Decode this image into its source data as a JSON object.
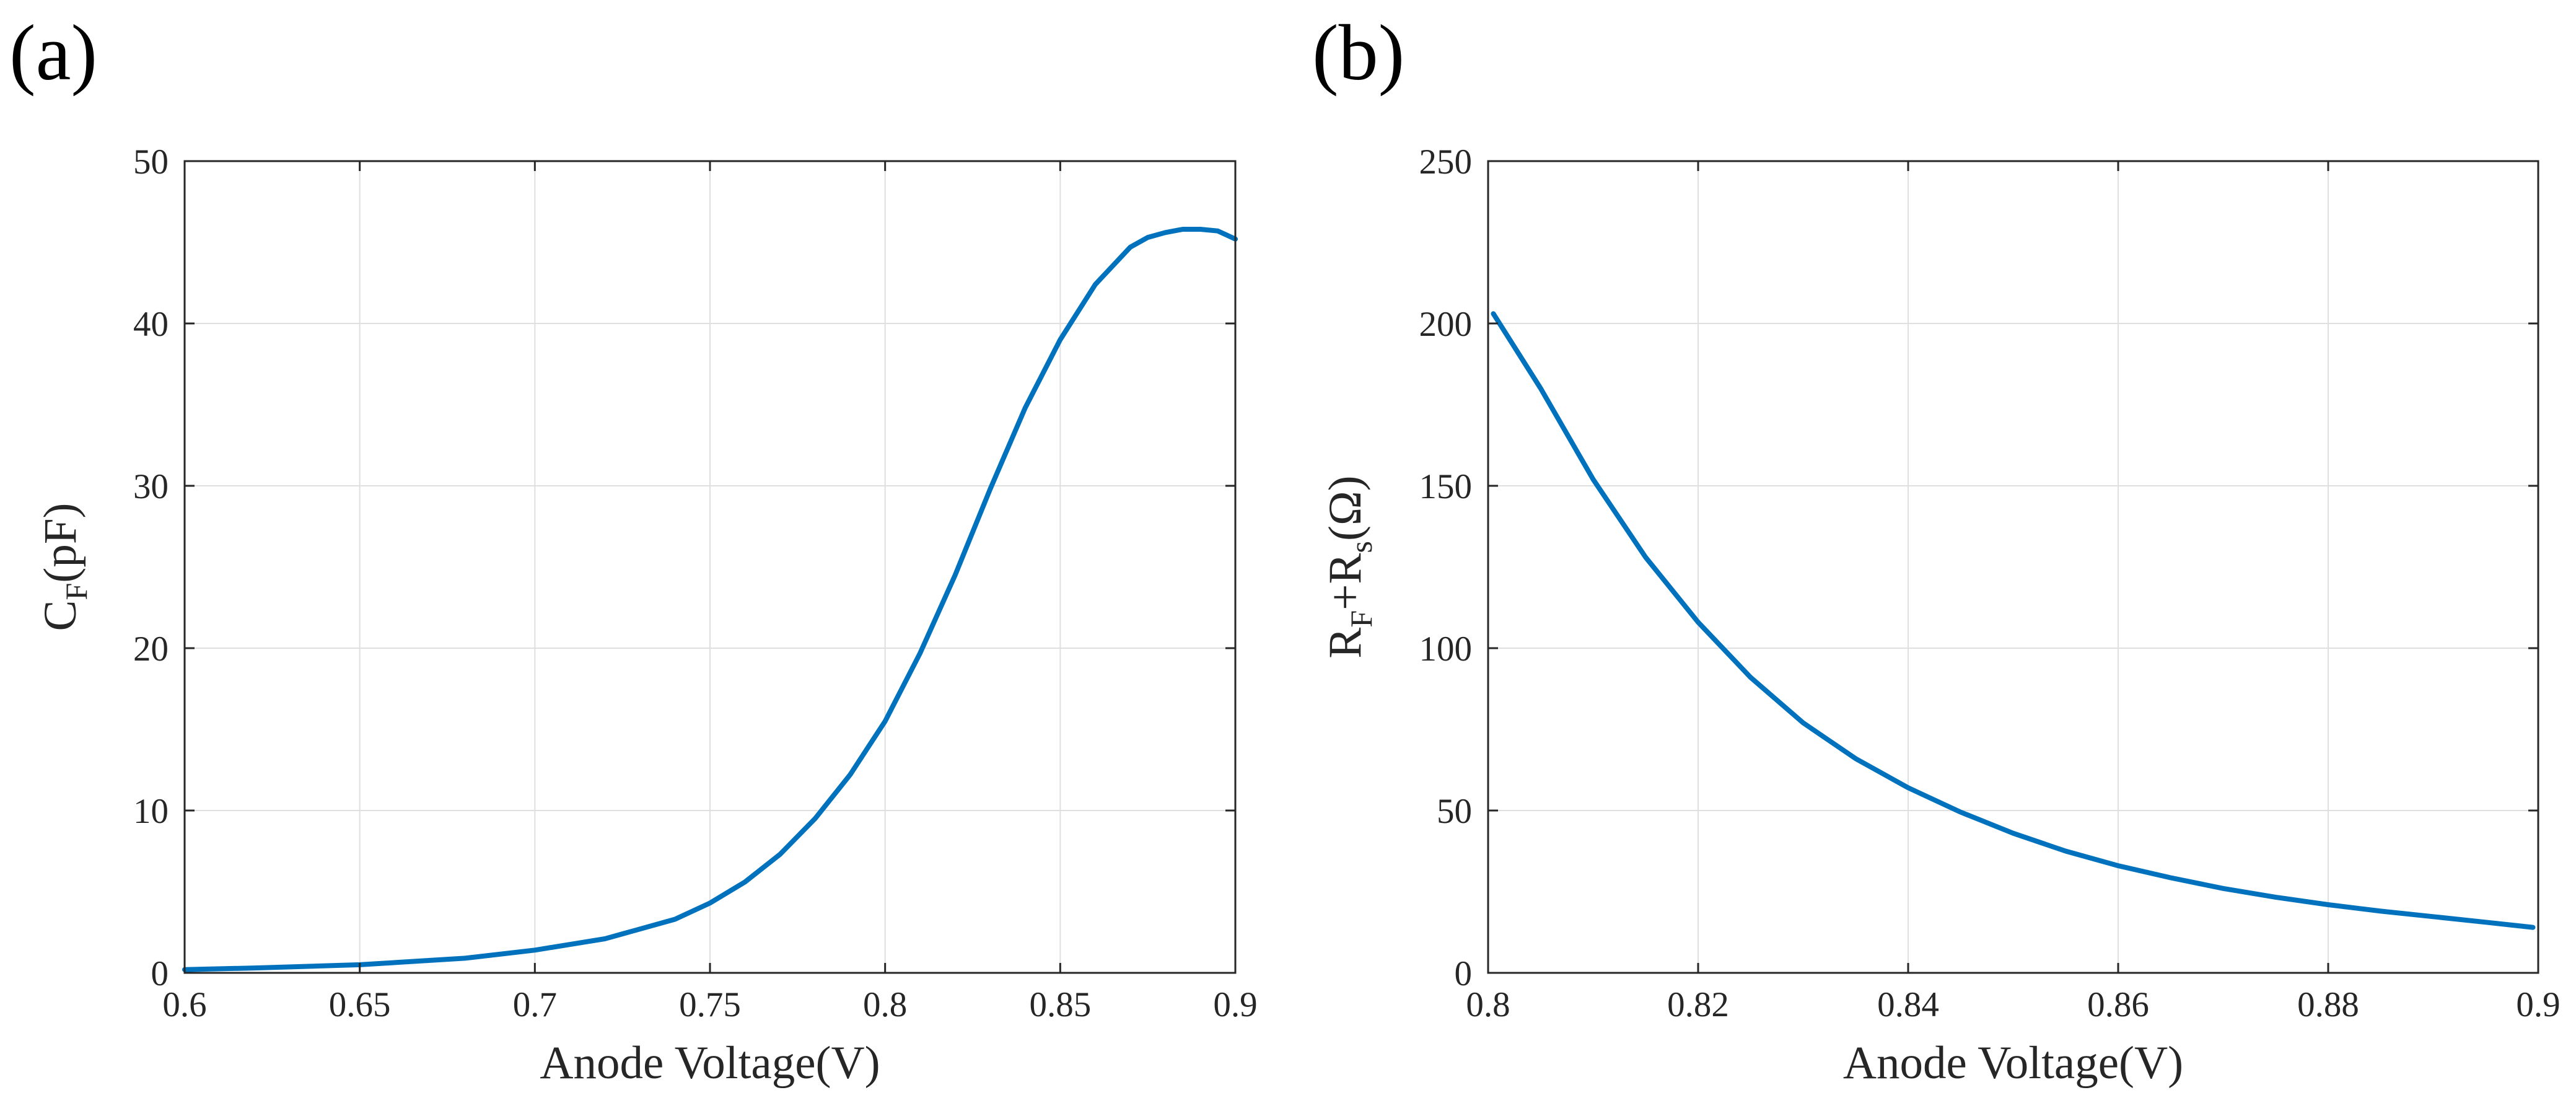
{
  "chart_data": [
    {
      "type": "line",
      "panel_label": "(a)",
      "title": "",
      "xlabel": "Anode Voltage(V)",
      "ylabel": {
        "main": "C",
        "sub": "F",
        "rest": "(pF)"
      },
      "xlim": [
        0.6,
        0.9
      ],
      "ylim": [
        0,
        50
      ],
      "xticks": [
        0.6,
        0.65,
        0.7,
        0.75,
        0.8,
        0.85,
        0.9
      ],
      "xtick_labels": [
        "0.6",
        "0.65",
        "0.7",
        "0.75",
        "0.8",
        "0.85",
        "0.9"
      ],
      "yticks": [
        0,
        10,
        20,
        30,
        40,
        50
      ],
      "ytick_labels": [
        "0",
        "10",
        "20",
        "30",
        "40",
        "50"
      ],
      "grid": true,
      "series": [
        {
          "name": "C_F",
          "color": "#0072BD",
          "x": [
            0.6,
            0.62,
            0.65,
            0.68,
            0.7,
            0.72,
            0.74,
            0.75,
            0.76,
            0.77,
            0.78,
            0.79,
            0.8,
            0.81,
            0.82,
            0.83,
            0.84,
            0.85,
            0.86,
            0.87,
            0.875,
            0.88,
            0.885,
            0.89,
            0.895,
            0.9
          ],
          "y": [
            0.2,
            0.3,
            0.5,
            0.9,
            1.4,
            2.1,
            3.3,
            4.3,
            5.6,
            7.3,
            9.5,
            12.2,
            15.5,
            19.7,
            24.5,
            29.8,
            34.8,
            39.0,
            42.4,
            44.7,
            45.3,
            45.6,
            45.8,
            45.8,
            45.7,
            45.2
          ]
        }
      ]
    },
    {
      "type": "line",
      "panel_label": "(b)",
      "title": "",
      "xlabel": "Anode Voltage(V)",
      "ylabel": {
        "main": "R",
        "sub": "F",
        "mid": "+R",
        "sub2": "s",
        "rest": "(Ω)"
      },
      "xlim": [
        0.8,
        0.9
      ],
      "ylim": [
        0,
        250
      ],
      "xticks": [
        0.8,
        0.82,
        0.84,
        0.86,
        0.88,
        0.9
      ],
      "xtick_labels": [
        "0.8",
        "0.82",
        "0.84",
        "0.86",
        "0.88",
        "0.9"
      ],
      "yticks": [
        0,
        50,
        100,
        150,
        200,
        250
      ],
      "ytick_labels": [
        "0",
        "50",
        "100",
        "150",
        "200",
        "250"
      ],
      "grid": true,
      "series": [
        {
          "name": "R_F+R_s",
          "color": "#0072BD",
          "x": [
            0.8005,
            0.805,
            0.81,
            0.815,
            0.82,
            0.825,
            0.83,
            0.835,
            0.84,
            0.845,
            0.85,
            0.855,
            0.86,
            0.865,
            0.87,
            0.875,
            0.88,
            0.885,
            0.89,
            0.895,
            0.8995
          ],
          "y": [
            203,
            180,
            152,
            128,
            108,
            91,
            77,
            66,
            57,
            49.5,
            43,
            37.5,
            33,
            29.3,
            26,
            23.3,
            21,
            19,
            17.3,
            15.6,
            14
          ]
        }
      ]
    }
  ]
}
